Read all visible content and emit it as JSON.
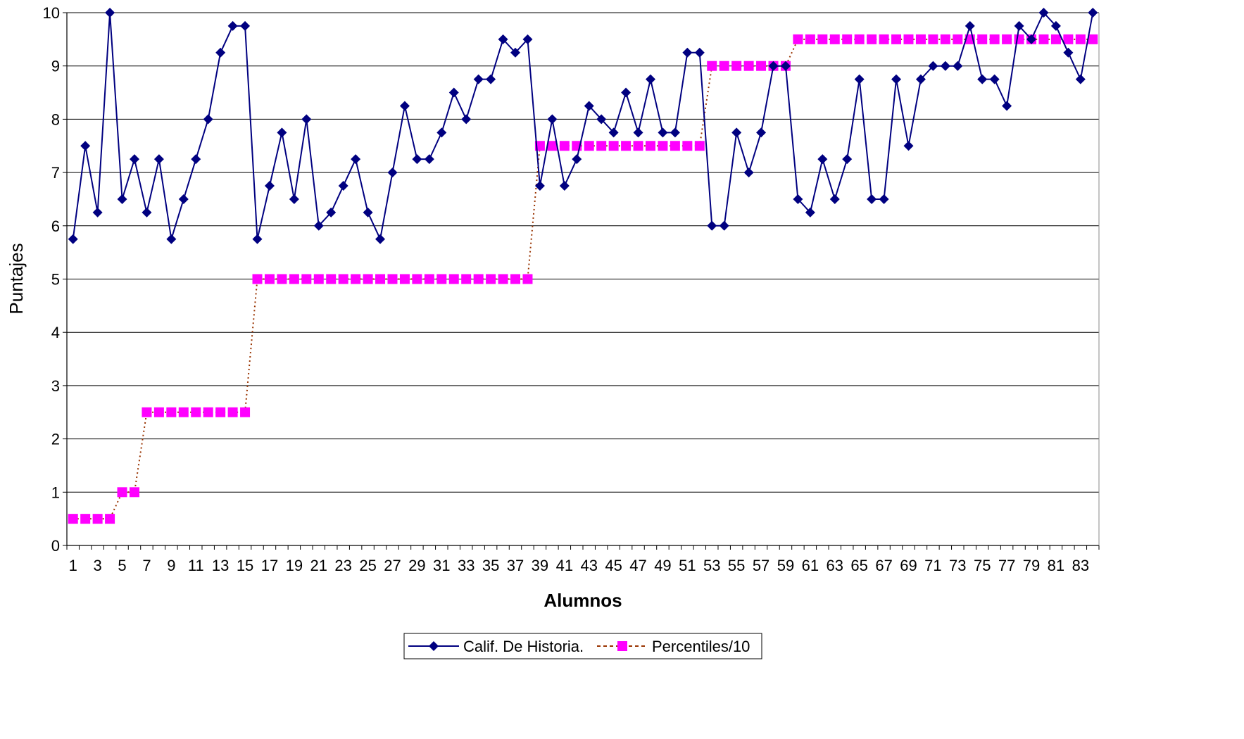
{
  "chart_data": {
    "type": "line",
    "xlabel": "Alumnos",
    "ylabel": "Puntajes",
    "ylim": [
      0,
      10
    ],
    "yticks": [
      "0",
      "1",
      "2",
      "3",
      "4",
      "5",
      "6",
      "7",
      "8",
      "9",
      "10"
    ],
    "xtick_labels": [
      "1",
      "3",
      "5",
      "7",
      "9",
      "11",
      "13",
      "15",
      "17",
      "19",
      "21",
      "23",
      "25",
      "27",
      "29",
      "31",
      "33",
      "35",
      "37",
      "39",
      "41",
      "43",
      "45",
      "47",
      "49",
      "51",
      "53",
      "55",
      "57",
      "59",
      "61",
      "63",
      "65",
      "67",
      "69",
      "71",
      "73",
      "75",
      "77",
      "79",
      "81",
      "83"
    ],
    "grid": "horizontal",
    "legend_position": "bottom",
    "x": [
      1,
      2,
      3,
      4,
      5,
      6,
      7,
      8,
      9,
      10,
      11,
      12,
      13,
      14,
      15,
      16,
      17,
      18,
      19,
      20,
      21,
      22,
      23,
      24,
      25,
      26,
      27,
      28,
      29,
      30,
      31,
      32,
      33,
      34,
      35,
      36,
      37,
      38,
      39,
      40,
      41,
      42,
      43,
      44,
      45,
      46,
      47,
      48,
      49,
      50,
      51,
      52,
      53,
      54,
      55,
      56,
      57,
      58,
      59,
      60,
      61,
      62,
      63,
      64,
      65,
      66,
      67,
      68,
      69,
      70,
      71,
      72,
      73,
      74,
      75,
      76,
      77,
      78,
      79,
      80,
      81,
      82,
      83,
      84
    ],
    "series": [
      {
        "name": "Calif. De Historia.",
        "color": "#000080",
        "marker": "diamond",
        "line": "solid",
        "values": [
          5.75,
          7.5,
          6.25,
          10,
          6.5,
          7.25,
          6.25,
          7.25,
          5.75,
          6.5,
          7.25,
          8,
          9.25,
          9.75,
          9.75,
          5.75,
          6.75,
          7.75,
          6.5,
          8,
          6,
          6.25,
          6.75,
          7.25,
          6.25,
          5.75,
          7,
          8.25,
          7.25,
          7.25,
          7.75,
          8.5,
          8,
          8.75,
          8.75,
          9.5,
          9.25,
          9.5,
          6.75,
          8,
          6.75,
          7.25,
          8.25,
          8,
          7.75,
          8.5,
          7.75,
          8.75,
          7.75,
          7.75,
          9.25,
          9.25,
          6,
          6,
          7.75,
          7,
          7.75,
          9,
          9,
          6.5,
          6.25,
          7.25,
          6.5,
          7.25,
          8.75,
          6.5,
          6.5,
          8.75,
          7.5,
          8.75,
          9,
          9,
          9,
          9.75,
          8.75,
          8.75,
          8.25,
          9.75,
          9.5,
          10,
          9.75,
          9.25,
          8.75,
          10
        ]
      },
      {
        "name": "Percentiles/10",
        "color": "#FF00FF",
        "line_color": "#993300",
        "marker": "square",
        "line": "dotted",
        "values": [
          0.5,
          0.5,
          0.5,
          0.5,
          1,
          1,
          2.5,
          2.5,
          2.5,
          2.5,
          2.5,
          2.5,
          2.5,
          2.5,
          2.5,
          5,
          5,
          5,
          5,
          5,
          5,
          5,
          5,
          5,
          5,
          5,
          5,
          5,
          5,
          5,
          5,
          5,
          5,
          5,
          5,
          5,
          5,
          5,
          7.5,
          7.5,
          7.5,
          7.5,
          7.5,
          7.5,
          7.5,
          7.5,
          7.5,
          7.5,
          7.5,
          7.5,
          7.5,
          7.5,
          9,
          9,
          9,
          9,
          9,
          9,
          9,
          9.5,
          9.5,
          9.5,
          9.5,
          9.5,
          9.5,
          9.5,
          9.5,
          9.5,
          9.5,
          9.5,
          9.5,
          9.5,
          9.5,
          9.5,
          9.5,
          9.5,
          9.5,
          9.5,
          9.5,
          9.5,
          9.5,
          9.5,
          9.5,
          9.5
        ]
      }
    ]
  }
}
